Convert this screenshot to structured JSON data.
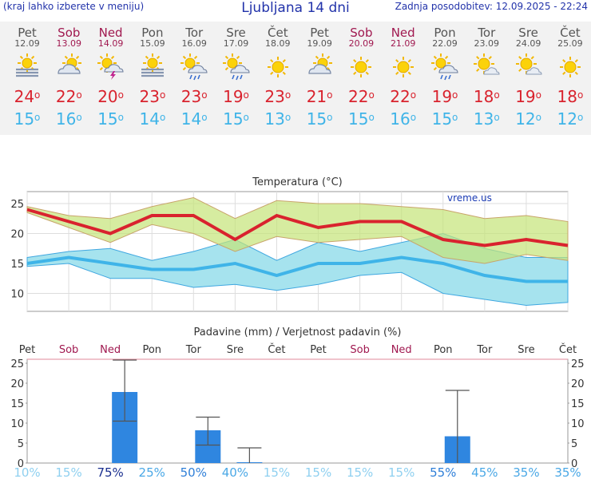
{
  "header": {
    "left_note": "(kraj lahko izberete v meniju)",
    "title": "Ljubljana 14 dni",
    "updated": "Zadnja posodobitev: 12.09.2025 - 22:24"
  },
  "days": [
    {
      "day": "Pet",
      "date": "12.09",
      "weekend": false,
      "icon": "sun-fog-icon",
      "tmax": "24",
      "tmin": "15"
    },
    {
      "day": "Sob",
      "date": "13.09",
      "weekend": true,
      "icon": "partly-cloudy-icon",
      "tmax": "22",
      "tmin": "16"
    },
    {
      "day": "Ned",
      "date": "14.09",
      "weekend": true,
      "icon": "sun-thunderstorm-icon",
      "tmax": "20",
      "tmin": "15"
    },
    {
      "day": "Pon",
      "date": "15.09",
      "weekend": false,
      "icon": "sun-fog-icon",
      "tmax": "23",
      "tmin": "14"
    },
    {
      "day": "Tor",
      "date": "16.09",
      "weekend": false,
      "icon": "sun-rain-icon",
      "tmax": "23",
      "tmin": "14"
    },
    {
      "day": "Sre",
      "date": "17.09",
      "weekend": false,
      "icon": "sun-rain-icon",
      "tmax": "19",
      "tmin": "15"
    },
    {
      "day": "Čet",
      "date": "18.09",
      "weekend": false,
      "icon": "sun-icon",
      "tmax": "23",
      "tmin": "13"
    },
    {
      "day": "Pet",
      "date": "19.09",
      "weekend": false,
      "icon": "partly-cloudy-icon",
      "tmax": "21",
      "tmin": "15"
    },
    {
      "day": "Sob",
      "date": "20.09",
      "weekend": true,
      "icon": "sun-icon",
      "tmax": "22",
      "tmin": "15"
    },
    {
      "day": "Ned",
      "date": "21.09",
      "weekend": true,
      "icon": "sun-icon",
      "tmax": "22",
      "tmin": "16"
    },
    {
      "day": "Pon",
      "date": "22.09",
      "weekend": false,
      "icon": "sun-rain-icon",
      "tmax": "19",
      "tmin": "15"
    },
    {
      "day": "Tor",
      "date": "23.09",
      "weekend": false,
      "icon": "sun-cloud-icon",
      "tmax": "18",
      "tmin": "13"
    },
    {
      "day": "Sre",
      "date": "24.09",
      "weekend": false,
      "icon": "sun-cloud-icon",
      "tmax": "19",
      "tmin": "12"
    },
    {
      "day": "Čet",
      "date": "25.09",
      "weekend": false,
      "icon": "sun-icon",
      "tmax": "18",
      "tmin": "12"
    }
  ],
  "colors": {
    "tmax": "#d9232e",
    "tmin": "#3fb4e8",
    "weekend": "#a0184f",
    "precip_bar": "#2f86e0"
  },
  "chart_data": [
    {
      "type": "line",
      "title": "Temperatura (°C)",
      "watermark": "vreme.us",
      "ylim": [
        7,
        27
      ],
      "yticks": [
        10,
        15,
        20,
        25
      ],
      "grid": true,
      "series": [
        {
          "values": [
            24,
            22,
            20,
            23,
            23,
            19,
            23,
            21,
            22,
            22,
            19,
            18,
            19,
            18
          ]
        },
        {
          "values": [
            24.5,
            23,
            22.5,
            24.5,
            26,
            22.5,
            25.5,
            25,
            25,
            24.5,
            24,
            22.5,
            23,
            22
          ]
        },
        {
          "values": [
            23.5,
            21,
            18.5,
            21.5,
            20,
            17,
            19.5,
            18.5,
            19,
            19.5,
            16,
            15,
            16.5,
            15.5
          ]
        },
        {
          "values": [
            15,
            16,
            15,
            14,
            14,
            15,
            13,
            15,
            15,
            16,
            15,
            13,
            12,
            12
          ]
        },
        {
          "values": [
            16,
            17,
            17.5,
            15.5,
            17,
            19,
            15.5,
            18.5,
            17,
            18.5,
            20,
            17.5,
            16,
            16
          ]
        },
        {
          "values": [
            14.5,
            15,
            12.5,
            12.5,
            11,
            11.5,
            10.5,
            11.5,
            13,
            13.5,
            10,
            9,
            8,
            8.5
          ]
        }
      ]
    },
    {
      "type": "bar",
      "title": "Padavine (mm) / Verjetnost padavin (%)",
      "ylim": [
        0,
        26
      ],
      "yticks": [
        0,
        5,
        10,
        15,
        20,
        25
      ],
      "categories": [
        "Pet",
        "Sob",
        "Ned",
        "Pon",
        "Tor",
        "Sre",
        "Čet",
        "Pet",
        "Sob",
        "Ned",
        "Pon",
        "Tor",
        "Sre",
        "Čet"
      ],
      "weekend": [
        false,
        true,
        true,
        false,
        false,
        false,
        false,
        false,
        true,
        true,
        false,
        false,
        false,
        false
      ],
      "values": [
        0,
        0,
        17.8,
        0,
        8.2,
        0.2,
        0,
        0,
        0,
        0,
        6.7,
        0,
        0,
        0
      ],
      "error_high": [
        0,
        0,
        25.8,
        0,
        11.5,
        3.8,
        0,
        0,
        0,
        0,
        18.2,
        0,
        0,
        0
      ],
      "error_low": [
        0,
        0,
        10.5,
        0,
        4.5,
        0,
        0,
        0,
        0,
        0,
        0,
        0,
        0,
        0
      ],
      "probability": [
        "10%",
        "15%",
        "75%",
        "25%",
        "50%",
        "40%",
        "15%",
        "15%",
        "15%",
        "15%",
        "55%",
        "45%",
        "35%",
        "35%"
      ]
    }
  ]
}
